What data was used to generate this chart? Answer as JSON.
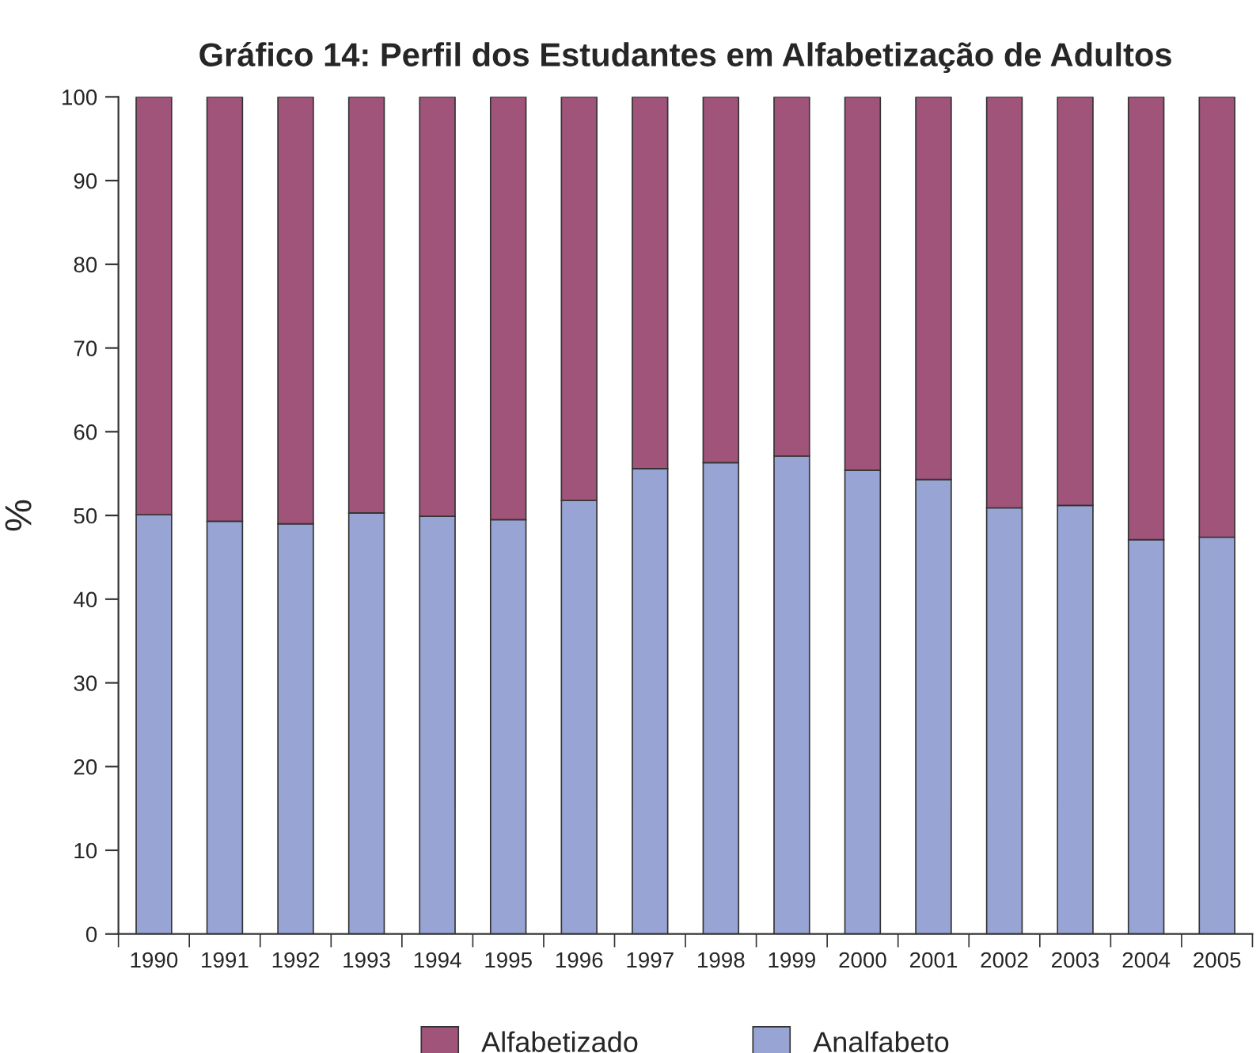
{
  "chart_data": {
    "type": "bar",
    "title": "Gráfico 14: Perfil dos Estudantes em Alfabetização de Adultos",
    "ylabel": "%",
    "categories": [
      "1990",
      "1991",
      "1992",
      "1993",
      "1994",
      "1995",
      "1996",
      "1997",
      "1998",
      "1999",
      "2000",
      "2001",
      "2002",
      "2003",
      "2004",
      "2005"
    ],
    "stacked": true,
    "series": [
      {
        "name": "Analfabeto",
        "color": "#98a4d4",
        "values": [
          50.1,
          49.3,
          49.0,
          50.3,
          49.9,
          49.5,
          51.8,
          55.6,
          56.3,
          57.1,
          55.4,
          54.3,
          50.9,
          51.2,
          47.1,
          47.4
        ]
      },
      {
        "name": "Alfabetizado",
        "color": "#a0547a",
        "values": [
          49.9,
          50.7,
          51.0,
          49.7,
          50.1,
          50.5,
          48.2,
          44.4,
          43.7,
          42.9,
          44.6,
          45.7,
          49.1,
          48.8,
          52.9,
          52.6
        ]
      }
    ],
    "ylim": [
      0,
      100
    ],
    "yticks": [
      0,
      10,
      20,
      30,
      40,
      50,
      60,
      70,
      80,
      90,
      100
    ],
    "grid": false,
    "legend": "bottom"
  }
}
